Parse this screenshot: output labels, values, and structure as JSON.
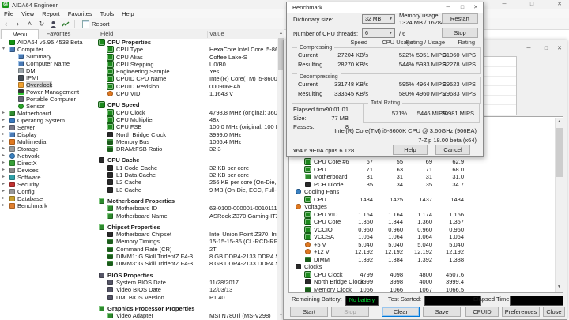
{
  "titlebar": {
    "title": "AIDA64 Engineer"
  },
  "menu": [
    "File",
    "View",
    "Report",
    "Favorites",
    "Tools",
    "Help"
  ],
  "toolbar": {
    "report": "Report"
  },
  "tabs": {
    "menu": "Menu",
    "favorites": "Favorites"
  },
  "list_header": {
    "field": "Field",
    "value": "Value"
  },
  "sidebar": {
    "items": [
      {
        "label": "AIDA64 v5.95.4538 Beta",
        "icon": "aida",
        "depth": 0,
        "arrow": ""
      },
      {
        "label": "Computer",
        "icon": "computer",
        "depth": 0,
        "arrow": "expanded"
      },
      {
        "label": "Summary",
        "icon": "summary",
        "depth": 1,
        "arrow": ""
      },
      {
        "label": "Computer Name",
        "icon": "name",
        "depth": 1,
        "arrow": ""
      },
      {
        "label": "DMI",
        "icon": "dmi",
        "depth": 1,
        "arrow": ""
      },
      {
        "label": "IPMI",
        "icon": "ipmi",
        "depth": 1,
        "arrow": ""
      },
      {
        "label": "Overclock",
        "icon": "overclock",
        "depth": 1,
        "arrow": "",
        "selected": true
      },
      {
        "label": "Power Management",
        "icon": "power",
        "depth": 1,
        "arrow": ""
      },
      {
        "label": "Portable Computer",
        "icon": "portable",
        "depth": 1,
        "arrow": ""
      },
      {
        "label": "Sensor",
        "icon": "sensor",
        "depth": 1,
        "arrow": ""
      },
      {
        "label": "Motherboard",
        "icon": "motherboard",
        "depth": 0,
        "arrow": "collapsed"
      },
      {
        "label": "Operating System",
        "icon": "os",
        "depth": 0,
        "arrow": "collapsed"
      },
      {
        "label": "Server",
        "icon": "server",
        "depth": 0,
        "arrow": "collapsed"
      },
      {
        "label": "Display",
        "icon": "display",
        "depth": 0,
        "arrow": "collapsed"
      },
      {
        "label": "Multimedia",
        "icon": "multimedia",
        "depth": 0,
        "arrow": "collapsed"
      },
      {
        "label": "Storage",
        "icon": "storage",
        "depth": 0,
        "arrow": "collapsed"
      },
      {
        "label": "Network",
        "icon": "network",
        "depth": 0,
        "arrow": "collapsed"
      },
      {
        "label": "DirectX",
        "icon": "directx",
        "depth": 0,
        "arrow": "collapsed"
      },
      {
        "label": "Devices",
        "icon": "devices",
        "depth": 0,
        "arrow": "collapsed"
      },
      {
        "label": "Software",
        "icon": "software",
        "depth": 0,
        "arrow": "collapsed"
      },
      {
        "label": "Security",
        "icon": "security",
        "depth": 0,
        "arrow": "collapsed"
      },
      {
        "label": "Config",
        "icon": "config",
        "depth": 0,
        "arrow": "collapsed"
      },
      {
        "label": "Database",
        "icon": "database",
        "depth": 0,
        "arrow": "collapsed"
      },
      {
        "label": "Benchmark",
        "icon": "benchmark",
        "depth": 0,
        "arrow": "collapsed"
      }
    ]
  },
  "main": {
    "rows": [
      {
        "t": "s",
        "f": "CPU Properties",
        "icon": "cpu"
      },
      {
        "t": "i",
        "f": "CPU Type",
        "v": "HexaCore Intel Core i5-8600K",
        "icon": "cpu"
      },
      {
        "t": "i",
        "f": "CPU Alias",
        "v": "Coffee Lake-S",
        "icon": "cpu"
      },
      {
        "t": "i",
        "f": "CPU Stepping",
        "v": "U0/B0",
        "icon": "cpu"
      },
      {
        "t": "i",
        "f": "Engineering Sample",
        "v": "Yes",
        "icon": "cpu"
      },
      {
        "t": "i",
        "f": "CPUID CPU Name",
        "v": "Intel(R) Core(TM) i5-8600K CPU @ 3.60GHz",
        "icon": "cpu"
      },
      {
        "t": "i",
        "f": "CPUID Revision",
        "v": "000906EAh",
        "icon": "cpu"
      },
      {
        "t": "i",
        "f": "CPU VID",
        "v": "1.1643 V",
        "icon": "volt"
      },
      {
        "t": "b"
      },
      {
        "t": "s",
        "f": "CPU Speed",
        "icon": "cpu"
      },
      {
        "t": "i",
        "f": "CPU Clock",
        "v": "4798.8 MHz  (original: 3600 MHz, overclock: 33%)",
        "icon": "cpu"
      },
      {
        "t": "i",
        "f": "CPU Multiplier",
        "v": "48x",
        "icon": "cpu"
      },
      {
        "t": "i",
        "f": "CPU FSB",
        "v": "100.0 MHz  (original: 100 MHz)",
        "icon": "cpu"
      },
      {
        "t": "i",
        "f": "North Bridge Clock",
        "v": "3999.0 MHz",
        "icon": "chip"
      },
      {
        "t": "i",
        "f": "Memory Bus",
        "v": "1066.4 MHz",
        "icon": "mem"
      },
      {
        "t": "i",
        "f": "DRAM:FSB Ratio",
        "v": "32:3",
        "icon": "mem"
      },
      {
        "t": "b"
      },
      {
        "t": "s",
        "f": "CPU Cache",
        "icon": "chip"
      },
      {
        "t": "i",
        "f": "L1 Code Cache",
        "v": "32 KB per core",
        "icon": "chip"
      },
      {
        "t": "i",
        "f": "L1 Data Cache",
        "v": "32 KB per core",
        "icon": "chip"
      },
      {
        "t": "i",
        "f": "L2 Cache",
        "v": "256 KB per core  (On-Die, ECC, Full-Speed)",
        "icon": "chip"
      },
      {
        "t": "i",
        "f": "L3 Cache",
        "v": "9 MB  (On-Die, ECC, Full-Speed)",
        "icon": "chip"
      },
      {
        "t": "b"
      },
      {
        "t": "s",
        "f": "Motherboard Properties",
        "icon": "board"
      },
      {
        "t": "i",
        "f": "Motherboard ID",
        "v": "63-0100-000001-00101111-090216-Chipset$0AAAA000_BIOS DATE: ...",
        "icon": "board"
      },
      {
        "t": "i",
        "f": "Motherboard Name",
        "v": "ASRock Z370 Gaming-ITX/ac  (1 PCI-E x16, 1 M.2, 2 DDR4 DIMM, A...",
        "icon": "board"
      },
      {
        "t": "b"
      },
      {
        "t": "s",
        "f": "Chipset Properties",
        "icon": "board"
      },
      {
        "t": "i",
        "f": "Motherboard Chipset",
        "v": "Intel Union Point Z370, Intel Coffee Lake-S",
        "icon": "chip"
      },
      {
        "t": "i",
        "f": "Memory Timings",
        "v": "15-15-15-36  (CL-RCD-RP-RAS)",
        "icon": "mem"
      },
      {
        "t": "i",
        "f": "Command Rate (CR)",
        "v": "2T",
        "icon": "mem"
      },
      {
        "t": "i",
        "f": "DIMM1: G Skill TridentZ F4-3...",
        "v": "8 GB DDR4-2133 DDR4 SDRAM  (16-15-15-36 @ 1066 MHz)  (15-15-...",
        "icon": "mem"
      },
      {
        "t": "i",
        "f": "DIMM3: G Skill TridentZ F4-3...",
        "v": "8 GB DDR4-2133 DDR4 SDRAM  (16-15-15-36 @ 1066 MHz)  (15-15-...",
        "icon": "mem"
      },
      {
        "t": "b"
      },
      {
        "t": "s",
        "f": "BIOS Properties",
        "icon": "bios"
      },
      {
        "t": "i",
        "f": "System BIOS Date",
        "v": "11/28/2017",
        "icon": "bios"
      },
      {
        "t": "i",
        "f": "Video BIOS Date",
        "v": "12/03/13",
        "icon": "bios"
      },
      {
        "t": "i",
        "f": "DMI BIOS Version",
        "v": "P1.40",
        "icon": "bios"
      },
      {
        "t": "b"
      },
      {
        "t": "s",
        "f": "Graphics Processor Properties",
        "icon": "gpu"
      },
      {
        "t": "i",
        "f": "Video Adapter",
        "v": "MSI N780Ti (MS-V298)",
        "icon": "gpu"
      },
      {
        "t": "i",
        "f": "GPU Code Name",
        "v": "GK110B  (PCI Express 3.0 x16 10DE / 100A, Rev B1)",
        "icon": "gpu"
      }
    ]
  },
  "benchmark": {
    "title": "Benchmark",
    "dictionary_label": "Dictionary size:",
    "dictionary_value": "32 MB",
    "memory_usage_label": "Memory usage:",
    "memory_usage_value": "1324 MB / 16284 MB",
    "threads_label": "Number of CPU threads:",
    "threads_value": "6",
    "threads_total": "/ 6",
    "restart": "Restart",
    "stop": "Stop",
    "columns": {
      "speed": "Speed",
      "cpu_usage": "CPU Usage",
      "rating_usage": "Rating / Usage",
      "rating": "Rating"
    },
    "compressing": {
      "label": "Compressing",
      "current_label": "Current",
      "resulting_label": "Resulting",
      "current": {
        "speed": "27204 KB/s",
        "usage": "522%",
        "rating_usage": "5951 MIPS",
        "rating": "31060 MIPS"
      },
      "resulting": {
        "speed": "28270 KB/s",
        "usage": "544%",
        "rating_usage": "5933 MIPS",
        "rating": "32278 MIPS"
      }
    },
    "decompressing": {
      "label": "Decompressing",
      "current_label": "Current",
      "resulting_label": "Resulting",
      "current": {
        "speed": "331748 KB/s",
        "usage": "595%",
        "rating_usage": "4964 MIPS",
        "rating": "29523 MIPS"
      },
      "resulting": {
        "speed": "333545 KB/s",
        "usage": "580%",
        "rating_usage": "4960 MIPS",
        "rating": "29683 MIPS"
      }
    },
    "elapsed_label": "Elapsed time:",
    "elapsed": "00:01:01",
    "size_label": "Size:",
    "size": "77 MB",
    "passes_label": "Passes:",
    "passes": "8",
    "total_rating_label": "Total Rating",
    "total": {
      "usage": "571%",
      "rating_usage": "5446 MIPS",
      "rating": "30981 MIPS"
    },
    "cpu_line": "Intel(R) Core(TM) i5-8600K CPU @ 3.60GHz (906EA)",
    "version_line": "7-Zip 18.00 beta (x64)",
    "build_line": "x64 6.9E0A cpus 6 128T",
    "help": "Help",
    "cancel": "Cancel"
  },
  "stability": {
    "rows": [
      {
        "label": "CPU Core #6",
        "icon": "cpu",
        "values": [
          "67",
          "55",
          "69",
          "62.9"
        ]
      },
      {
        "label": "CPU",
        "icon": "cpu",
        "values": [
          "71",
          "63",
          "71",
          "68.0"
        ]
      },
      {
        "label": "Motherboard",
        "icon": "board",
        "values": [
          "31",
          "31",
          "31",
          "31.0"
        ]
      },
      {
        "label": "PCH Diode",
        "icon": "chip",
        "values": [
          "35",
          "34",
          "35",
          "34.7"
        ]
      },
      {
        "label": "Cooling Fans",
        "icon": "fan",
        "group": true,
        "values": []
      },
      {
        "label": "CPU",
        "icon": "cpu",
        "values": [
          "1434",
          "1425",
          "1437",
          "1434"
        ]
      },
      {
        "label": "Voltages",
        "icon": "volt",
        "group": true,
        "values": []
      },
      {
        "label": "CPU VID",
        "icon": "cpu",
        "values": [
          "1.164",
          "1.164",
          "1.174",
          "1.166"
        ]
      },
      {
        "label": "CPU Core",
        "icon": "cpu",
        "values": [
          "1.360",
          "1.344",
          "1.360",
          "1.357"
        ]
      },
      {
        "label": "VCCIO",
        "icon": "cpu",
        "values": [
          "0.960",
          "0.960",
          "0.960",
          "0.960"
        ]
      },
      {
        "label": "VCCSA",
        "icon": "cpu",
        "values": [
          "1.064",
          "1.064",
          "1.064",
          "1.064"
        ]
      },
      {
        "label": "+5 V",
        "icon": "volt",
        "values": [
          "5.040",
          "5.040",
          "5.040",
          "5.040"
        ]
      },
      {
        "label": "+12 V",
        "icon": "volt",
        "values": [
          "12.192",
          "12.192",
          "12.192",
          "12.192"
        ]
      },
      {
        "label": "DIMM",
        "icon": "mem",
        "values": [
          "1.392",
          "1.384",
          "1.392",
          "1.388"
        ]
      },
      {
        "label": "Clocks",
        "icon": "clock",
        "group": true,
        "values": []
      },
      {
        "label": "CPU Clock",
        "icon": "cpu",
        "values": [
          "4799",
          "4098",
          "4800",
          "4507.6"
        ]
      },
      {
        "label": "North Bridge Clock",
        "icon": "chip",
        "values": [
          "3999",
          "3998",
          "4000",
          "3999.4"
        ]
      },
      {
        "label": "Memory Clock",
        "icon": "mem",
        "values": [
          "1066",
          "1066",
          "1067",
          "1066.5"
        ]
      }
    ],
    "battery_label": "Remaining Battery:",
    "battery_value": "No battery",
    "test_started_label": "Test Started:",
    "elapsed_label": "Elapsed Time:",
    "buttons": {
      "start": "Start",
      "stop": "Stop",
      "clear": "Clear",
      "save": "Save",
      "cpuid": "CPUID",
      "preferences": "Preferences",
      "close": "Close"
    }
  }
}
